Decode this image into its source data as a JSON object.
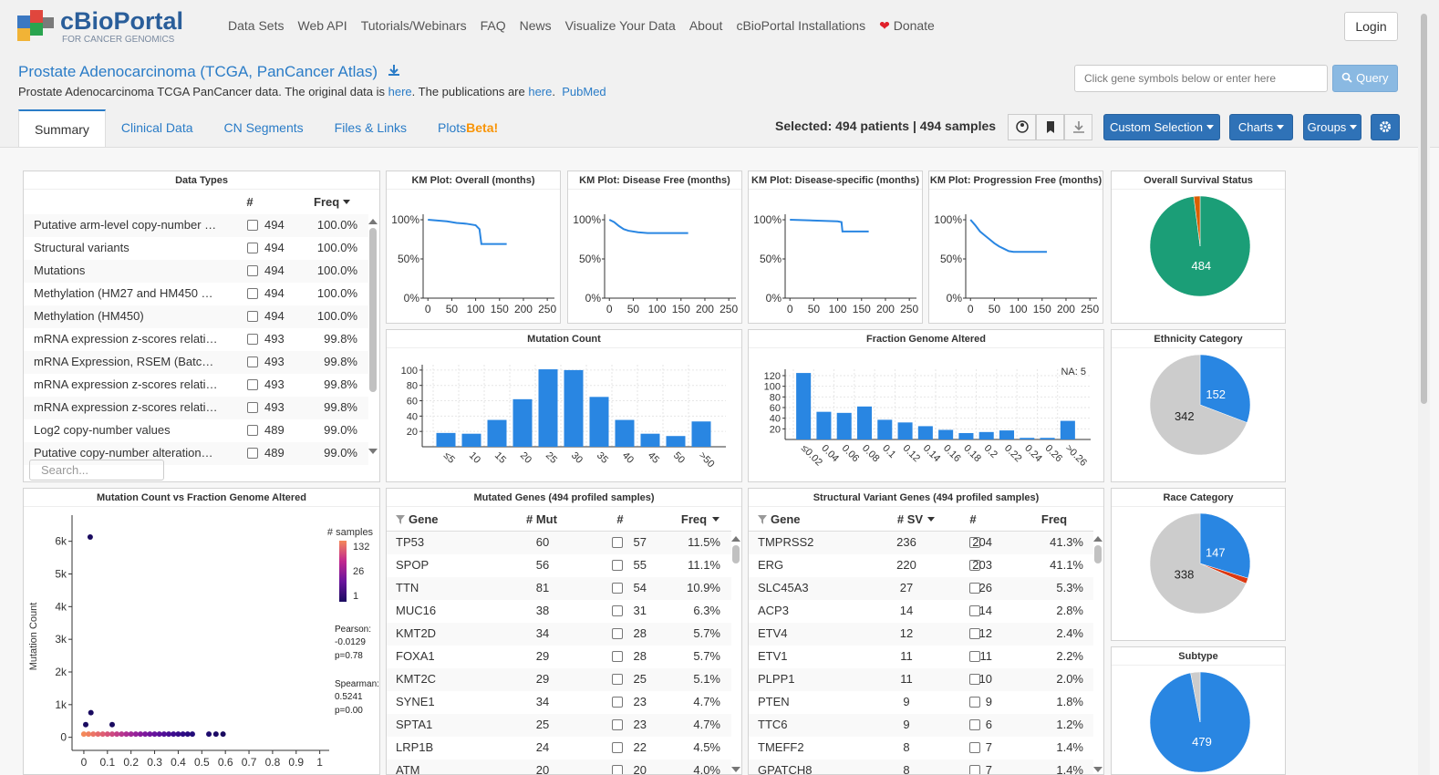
{
  "nav": {
    "brand": "cBioPortal",
    "tagline": "FOR CANCER GENOMICS",
    "links": [
      "Data Sets",
      "Web API",
      "Tutorials/Webinars",
      "FAQ",
      "News",
      "Visualize Your Data",
      "About",
      "cBioPortal Installations"
    ],
    "donate": "Donate",
    "login": "Login"
  },
  "study": {
    "title": "Prostate Adenocarcinoma (TCGA, PanCancer Atlas)",
    "description": [
      "Prostate Adenocarcinoma TCGA PanCancer data. The original data is ",
      "here",
      ". The publications are ",
      "here",
      ".",
      "PubMed"
    ],
    "query_placeholder": "Click gene symbols below or enter here",
    "query_button": "Query"
  },
  "tabs": {
    "items": [
      "Summary",
      "Clinical Data",
      "CN Segments",
      "Files & Links",
      "Plots"
    ],
    "beta": "Beta!",
    "active": 0
  },
  "selection": {
    "label": "Selected:",
    "patients": "494 patients",
    "separator": "|",
    "samples": "494 samples",
    "buttons": [
      "Custom Selection",
      "Charts",
      "Groups"
    ]
  },
  "data_types": {
    "title": "Data Types",
    "headers": [
      "#",
      "Freq"
    ],
    "rows": [
      [
        "Putative arm-level copy-number …",
        494,
        "100.0%"
      ],
      [
        "Structural variants",
        494,
        "100.0%"
      ],
      [
        "Mutations",
        494,
        "100.0%"
      ],
      [
        "Methylation (HM27 and HM450 …",
        494,
        "100.0%"
      ],
      [
        "Methylation (HM450)",
        494,
        "100.0%"
      ],
      [
        "mRNA expression z-scores relati…",
        493,
        "99.8%"
      ],
      [
        "mRNA Expression, RSEM (Batc…",
        493,
        "99.8%"
      ],
      [
        "mRNA expression z-scores relati…",
        493,
        "99.8%"
      ],
      [
        "mRNA expression z-scores relati…",
        493,
        "99.8%"
      ],
      [
        "Log2 copy-number values",
        489,
        "99.0%"
      ],
      [
        "Putative copy-number alteration…",
        489,
        "99.0%"
      ]
    ],
    "search_placeholder": "Search..."
  },
  "mutated_genes": {
    "title": "Mutated Genes (494 profiled samples)",
    "headers": [
      "Gene",
      "# Mut",
      "#",
      "Freq"
    ],
    "rows": [
      [
        "TP53",
        60,
        57,
        "11.5%"
      ],
      [
        "SPOP",
        56,
        55,
        "11.1%"
      ],
      [
        "TTN",
        81,
        54,
        "10.9%"
      ],
      [
        "MUC16",
        38,
        31,
        "6.3%"
      ],
      [
        "KMT2D",
        34,
        28,
        "5.7%"
      ],
      [
        "FOXA1",
        29,
        28,
        "5.7%"
      ],
      [
        "KMT2C",
        29,
        25,
        "5.1%"
      ],
      [
        "SYNE1",
        34,
        23,
        "4.7%"
      ],
      [
        "SPTA1",
        25,
        23,
        "4.7%"
      ],
      [
        "LRP1B",
        24,
        22,
        "4.5%"
      ],
      [
        "ATM",
        20,
        20,
        "4.0%"
      ]
    ]
  },
  "sv_genes": {
    "title": "Structural Variant Genes (494 profiled samples)",
    "headers": [
      "Gene",
      "# SV",
      "#",
      "Freq"
    ],
    "rows": [
      [
        "TMPRSS2",
        236,
        204,
        "41.3%"
      ],
      [
        "ERG",
        220,
        203,
        "41.1%"
      ],
      [
        "SLC45A3",
        27,
        26,
        "5.3%"
      ],
      [
        "ACP3",
        14,
        14,
        "2.8%"
      ],
      [
        "ETV4",
        12,
        12,
        "2.4%"
      ],
      [
        "ETV1",
        11,
        11,
        "2.2%"
      ],
      [
        "PLPP1",
        11,
        10,
        "2.0%"
      ],
      [
        "PTEN",
        9,
        9,
        "1.8%"
      ],
      [
        "TTC6",
        9,
        6,
        "1.2%"
      ],
      [
        "TMEFF2",
        8,
        7,
        "1.4%"
      ],
      [
        "GPATCH8",
        8,
        7,
        "1.4%"
      ]
    ]
  },
  "chart_data": [
    {
      "type": "line",
      "title": "KM Plot: Overall (months)",
      "x": [
        0,
        20,
        40,
        60,
        80,
        100,
        108,
        112,
        165
      ],
      "values": [
        100,
        99,
        98,
        96,
        95,
        93,
        88,
        69,
        69
      ],
      "color": "#2986e2",
      "xlim": [
        -10,
        265
      ],
      "ylim": [
        0,
        107
      ],
      "xticks": [
        0,
        50,
        100,
        150,
        200,
        250
      ],
      "yticks": [
        {
          "value": 0,
          "label": "0%"
        },
        {
          "value": 50,
          "label": "50%"
        },
        {
          "value": 100,
          "label": "100%"
        }
      ]
    },
    {
      "type": "line",
      "title": "KM Plot: Disease Free (months)",
      "x": [
        0,
        10,
        20,
        30,
        40,
        60,
        80,
        165
      ],
      "values": [
        100,
        97,
        92,
        88,
        86,
        84,
        83,
        83
      ],
      "color": "#2986e2",
      "xlim": [
        -10,
        265
      ],
      "ylim": [
        0,
        107
      ],
      "xticks": [
        0,
        50,
        100,
        150,
        200,
        250
      ],
      "yticks": [
        {
          "value": 0,
          "label": "0%"
        },
        {
          "value": 50,
          "label": "50%"
        },
        {
          "value": 100,
          "label": "100%"
        }
      ]
    },
    {
      "type": "line",
      "title": "KM Plot: Disease-specific (months)",
      "x": [
        0,
        50,
        100,
        108,
        110,
        165
      ],
      "values": [
        100,
        99,
        98,
        97,
        85,
        85
      ],
      "color": "#2986e2",
      "xlim": [
        -10,
        265
      ],
      "ylim": [
        0,
        107
      ],
      "xticks": [
        0,
        50,
        100,
        150,
        200,
        250
      ],
      "yticks": [
        {
          "value": 0,
          "label": "0%"
        },
        {
          "value": 50,
          "label": "50%"
        },
        {
          "value": 100,
          "label": "100%"
        }
      ]
    },
    {
      "type": "line",
      "title": "KM Plot: Progression Free (months)",
      "x": [
        0,
        10,
        20,
        30,
        40,
        50,
        60,
        70,
        80,
        90,
        160
      ],
      "values": [
        100,
        93,
        85,
        80,
        75,
        70,
        66,
        63,
        60,
        59,
        59
      ],
      "color": "#2986e2",
      "xlim": [
        -10,
        265
      ],
      "ylim": [
        0,
        107
      ],
      "xticks": [
        0,
        50,
        100,
        150,
        200,
        250
      ],
      "yticks": [
        {
          "value": 0,
          "label": "0%"
        },
        {
          "value": 50,
          "label": "50%"
        },
        {
          "value": 100,
          "label": "100%"
        }
      ]
    },
    {
      "type": "pie",
      "title": "Overall Survival Status",
      "values": [
        484,
        10
      ],
      "colors": [
        "#1b9e77",
        "#d95f02"
      ]
    },
    {
      "type": "bar",
      "title": "Mutation Count",
      "categories": [
        "≤5",
        "10",
        "15",
        "20",
        "25",
        "30",
        "35",
        "40",
        "45",
        "50",
        ">50"
      ],
      "values": [
        18,
        17,
        35,
        62,
        101,
        100,
        65,
        35,
        17,
        14,
        33
      ],
      "color": "#2986e2",
      "ylim": [
        0,
        107
      ],
      "yticks": [
        20,
        40,
        60,
        80,
        100
      ],
      "grid": true
    },
    {
      "type": "bar",
      "title": "Fraction Genome Altered",
      "categories": [
        "≤0.02",
        "0.04",
        "0.06",
        "0.08",
        "0.1",
        "0.12",
        "0.14",
        "0.16",
        "0.18",
        "0.2",
        "0.22",
        "0.24",
        "0.26",
        ">0.26"
      ],
      "values": [
        125,
        52,
        50,
        62,
        37,
        32,
        25,
        18,
        12,
        14,
        17,
        3,
        3,
        35
      ],
      "color": "#2986e2",
      "ylim": [
        0,
        132
      ],
      "yticks": [
        20,
        40,
        60,
        80,
        100,
        120
      ],
      "grid": true,
      "annotation": "NA: 5"
    },
    {
      "type": "pie",
      "title": "Ethnicity Category",
      "values": [
        152,
        342
      ],
      "colors": [
        "#2986e2",
        "#cccccc"
      ]
    },
    {
      "type": "scatter",
      "title": "Mutation Count vs Fraction Genome Altered",
      "ylabel": "Mutation Count",
      "x": [
        0,
        0.02,
        0.04,
        0.06,
        0.08,
        0.1,
        0.12,
        0.14,
        0.16,
        0.18,
        0.2,
        0.22,
        0.24,
        0.26,
        0.28,
        0.3,
        0.32,
        0.34,
        0.36,
        0.38,
        0.4,
        0.42,
        0.44,
        0.46,
        0.53,
        0.56,
        0.59,
        0.027,
        0.03,
        0.008,
        0.12
      ],
      "values": [
        100,
        100,
        100,
        100,
        100,
        100,
        100,
        100,
        100,
        100,
        100,
        100,
        100,
        100,
        100,
        100,
        100,
        100,
        100,
        100,
        100,
        100,
        100,
        100,
        100,
        100,
        100,
        6130,
        756,
        390,
        390
      ],
      "colors": [
        "#f4895a",
        "#f08060",
        "#eb7566",
        "#e56a6c",
        "#de5f73",
        "#d6547a",
        "#cd4a81",
        "#c34088",
        "#b8378e",
        "#ad2f93",
        "#a12897",
        "#95229a",
        "#891d9c",
        "#7d199d",
        "#71169d",
        "#66139c",
        "#5b119a",
        "#510f97",
        "#470e93",
        "#3e0d8f",
        "#360c8a",
        "#2f0c85",
        "#280b7f",
        "#220b79",
        "#1e0b6e",
        "#1c0b66",
        "#1a0b60",
        "#1a0b60",
        "#1a0b60",
        "#1a0b60",
        "#1a0b60"
      ],
      "xlim": [
        -0.05,
        1.04
      ],
      "ylim": [
        -400,
        6800
      ],
      "xticks": [
        0,
        0.1,
        0.2,
        0.3,
        0.4,
        0.5,
        0.6,
        0.7,
        0.8,
        0.9,
        1
      ],
      "yticks": [
        0,
        {
          "value": 1000,
          "label": "1k"
        },
        {
          "value": 2000,
          "label": "2k"
        },
        {
          "value": 3000,
          "label": "3k"
        },
        {
          "value": 4000,
          "label": "4k"
        },
        {
          "value": 5000,
          "label": "5k"
        },
        {
          "value": 6000,
          "label": "6k"
        }
      ],
      "legend": {
        "title": "# samples",
        "ticks": [
          132,
          26,
          1
        ],
        "colors": [
          "#f4895a",
          "#c2288e",
          "#6a149c",
          "#1a0b60"
        ]
      },
      "annotations": [
        "Pearson:",
        "-0.0129",
        "p=0.78",
        "Spearman:",
        "0.5241",
        "p=0.00"
      ]
    },
    {
      "type": "pie",
      "title": "Race Category",
      "values": [
        147,
        9,
        338
      ],
      "colors": [
        "#2986e2",
        "#dc3912",
        "#cccccc"
      ]
    },
    {
      "type": "pie",
      "title": "Subtype",
      "values": [
        479,
        15
      ],
      "colors": [
        "#2986e2",
        "#cccccc"
      ]
    }
  ]
}
